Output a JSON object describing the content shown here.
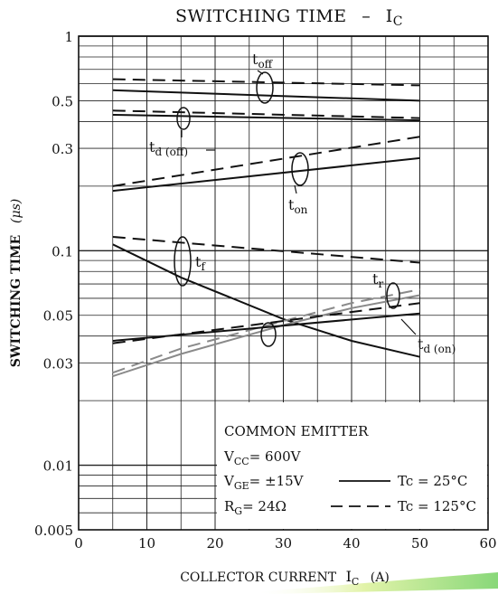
{
  "chart_data": {
    "type": "line",
    "title_main": "SWITCHING TIME",
    "title_sep": "–",
    "title_sym": "I",
    "title_sub": "C",
    "xlabel": "COLLECTOR CURRENT",
    "xlabel_sym": "I",
    "xlabel_sub": "C",
    "xlabel_unit": "(A)",
    "ylabel": "SWITCHING TIME",
    "ylabel_unit": "(μs)",
    "x_scale": "linear",
    "y_scale": "log",
    "xlim": [
      0,
      60
    ],
    "ylim": [
      0.005,
      1
    ],
    "x_ticks": [
      0,
      10,
      20,
      30,
      40,
      50,
      60
    ],
    "x_tick_labels": [
      "0",
      "10",
      "20",
      "30",
      "40",
      "50",
      "60"
    ],
    "y_tick_values": [
      1,
      0.5,
      0.3,
      0.1,
      0.05,
      0.03,
      0.01,
      0.005
    ],
    "y_tick_labels": [
      "1",
      "0.5",
      "0.3",
      "0.1",
      "0.05",
      "0.03",
      "0.01",
      "0.005"
    ],
    "grid": true,
    "line_styles": {
      "solid": "#111111",
      "dashed": "#111111",
      "gray": "#8a8a8a"
    },
    "series": [
      {
        "label": "t_off_25",
        "temp": "25",
        "x": [
          5,
          50
        ],
        "y": [
          0.56,
          0.5
        ]
      },
      {
        "label": "t_off_125",
        "temp": "125",
        "x": [
          5,
          50
        ],
        "y": [
          0.63,
          0.59
        ]
      },
      {
        "label": "t_d_off_25",
        "temp": "25",
        "x": [
          5,
          50
        ],
        "y": [
          0.43,
          0.405
        ]
      },
      {
        "label": "t_d_off_125",
        "temp": "125",
        "x": [
          5,
          50
        ],
        "y": [
          0.45,
          0.415
        ]
      },
      {
        "label": "t_on_25",
        "temp": "25",
        "x": [
          5,
          50
        ],
        "y": [
          0.19,
          0.27
        ]
      },
      {
        "label": "t_on_125",
        "temp": "125",
        "x": [
          5,
          50
        ],
        "y": [
          0.2,
          0.34
        ]
      },
      {
        "label": "t_f_25",
        "temp": "25",
        "x": [
          5,
          15,
          30,
          40,
          50
        ],
        "y": [
          0.107,
          0.075,
          0.048,
          0.038,
          0.032
        ]
      },
      {
        "label": "t_f_125",
        "temp": "125",
        "x": [
          5,
          50
        ],
        "y": [
          0.116,
          0.088
        ]
      },
      {
        "label": "t_r_25",
        "temp": "25",
        "x": [
          5,
          15,
          30,
          40,
          50
        ],
        "y": [
          0.026,
          0.033,
          0.045,
          0.054,
          0.062
        ]
      },
      {
        "label": "t_r_125",
        "temp": "125",
        "x": [
          5,
          15,
          30,
          40,
          50
        ],
        "y": [
          0.027,
          0.035,
          0.047,
          0.057,
          0.066
        ]
      },
      {
        "label": "t_d_on_25",
        "temp": "25",
        "x": [
          5,
          50
        ],
        "y": [
          0.038,
          0.051
        ]
      },
      {
        "label": "t_d_on_125",
        "temp": "125",
        "x": [
          5,
          50
        ],
        "y": [
          0.037,
          0.057
        ]
      }
    ],
    "curve_labels": [
      {
        "name": "toff",
        "base": "t",
        "sub": "off"
      },
      {
        "name": "tdoff",
        "base": "t",
        "sub": "d (off)"
      },
      {
        "name": "ton",
        "base": "t",
        "sub": "on"
      },
      {
        "name": "tf",
        "base": "t",
        "sub": "f"
      },
      {
        "name": "tr",
        "base": "t",
        "sub": "r"
      },
      {
        "name": "tdon",
        "base": "t",
        "sub": "d (on)"
      }
    ],
    "conditions": {
      "heading": "COMMON EMITTER",
      "vcc_sym": "V",
      "vcc_sub": "CC",
      "vcc_val": "= 600V",
      "vge_sym": "V",
      "vge_sub": "GE",
      "vge_val": "= ±15V",
      "rg_sym": "R",
      "rg_sub": "G",
      "rg_val": "= 24Ω",
      "legend_solid": "Tc = 25°C",
      "legend_dashed": "Tc = 125°C"
    }
  }
}
